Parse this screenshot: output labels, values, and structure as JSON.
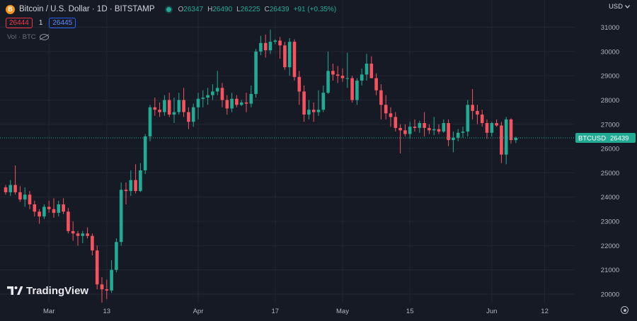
{
  "header": {
    "coin_icon": "B",
    "symbol_title": "Bitcoin / U.S. Dollar · 1D · BITSTAMP",
    "ohlc": {
      "o_label": "O",
      "o": "26347",
      "h_label": "H",
      "h": "26490",
      "l_label": "L",
      "l": "26225",
      "c_label": "C",
      "c": "26439",
      "change": "+91 (+0.35%)"
    }
  },
  "trade": {
    "bid": "26444",
    "spread": "1",
    "ask": "26445"
  },
  "volume_label": "Vol · BTC",
  "currency": "USD",
  "logo_text": "TradingView",
  "price_tag": {
    "symbol": "BTCUSD",
    "price": "26439"
  },
  "colors": {
    "up": "#22ab94",
    "down": "#f7525f",
    "background": "#161a25",
    "grid": "#232733"
  },
  "chart_data": {
    "type": "candlestick",
    "y_ticks": [
      31000,
      30000,
      29000,
      28000,
      27000,
      26000,
      25000,
      24000,
      23000,
      22000,
      21000,
      20000
    ],
    "ylim": [
      19600,
      31100
    ],
    "last_price": 26439,
    "x_ticks": [
      {
        "label": "Mar",
        "index": 9
      },
      {
        "label": "13",
        "index": 21
      },
      {
        "label": "Apr",
        "index": 40
      },
      {
        "label": "17",
        "index": 56
      },
      {
        "label": "May",
        "index": 70
      },
      {
        "label": "15",
        "index": 84
      },
      {
        "label": "Jun",
        "index": 101
      },
      {
        "label": "12",
        "index": 112
      }
    ],
    "candles": [
      [
        24400,
        24500,
        24100,
        24200
      ],
      [
        24200,
        24700,
        24050,
        24500
      ],
      [
        24500,
        25300,
        24100,
        24200
      ],
      [
        24200,
        24450,
        23800,
        23900
      ],
      [
        23900,
        24400,
        23600,
        24100
      ],
      [
        24100,
        24250,
        23500,
        23700
      ],
      [
        23700,
        23850,
        23200,
        23400
      ],
      [
        23400,
        23500,
        22900,
        23200
      ],
      [
        23200,
        23700,
        23100,
        23600
      ],
      [
        23600,
        23850,
        23350,
        23500
      ],
      [
        23500,
        23950,
        23150,
        23350
      ],
      [
        23350,
        23850,
        23200,
        23700
      ],
      [
        23700,
        23950,
        23300,
        23400
      ],
      [
        23400,
        23550,
        22500,
        22600
      ],
      [
        22600,
        23000,
        22200,
        22500
      ],
      [
        22500,
        22600,
        22000,
        22400
      ],
      [
        22400,
        22600,
        22100,
        22500
      ],
      [
        22500,
        22750,
        22300,
        22400
      ],
      [
        22400,
        22500,
        21600,
        21800
      ],
      [
        21800,
        22000,
        20200,
        20400
      ],
      [
        20400,
        20700,
        19650,
        20200
      ],
      [
        20200,
        20600,
        19800,
        20150
      ],
      [
        20150,
        21400,
        20050,
        21000
      ],
      [
        21000,
        22300,
        20900,
        22150
      ],
      [
        22150,
        24600,
        22000,
        24300
      ],
      [
        24300,
        24600,
        23700,
        24250
      ],
      [
        24250,
        25100,
        24050,
        24700
      ],
      [
        24700,
        25350,
        24150,
        24250
      ],
      [
        24250,
        25400,
        24200,
        25100
      ],
      [
        25100,
        26600,
        24950,
        26500
      ],
      [
        26500,
        27800,
        26300,
        27700
      ],
      [
        27700,
        28100,
        27350,
        27600
      ],
      [
        27600,
        27900,
        27300,
        27500
      ],
      [
        27500,
        28200,
        27350,
        28000
      ],
      [
        28000,
        28300,
        27300,
        27400
      ],
      [
        27400,
        28100,
        27050,
        27500
      ],
      [
        27500,
        28300,
        27400,
        28000
      ],
      [
        28000,
        28500,
        27300,
        27500
      ],
      [
        27500,
        27700,
        26800,
        27100
      ],
      [
        27100,
        27850,
        26900,
        27700
      ],
      [
        27700,
        28300,
        27200,
        28050
      ],
      [
        28050,
        28400,
        27700,
        28100
      ],
      [
        28100,
        28500,
        27800,
        28200
      ],
      [
        28200,
        28650,
        28000,
        28350
      ],
      [
        28350,
        29200,
        28200,
        28500
      ],
      [
        28500,
        28700,
        27700,
        28000
      ],
      [
        28000,
        28200,
        27400,
        27650
      ],
      [
        27650,
        28300,
        27500,
        28050
      ],
      [
        28050,
        28200,
        27700,
        27800
      ],
      [
        27800,
        28000,
        27750,
        27900
      ],
      [
        27900,
        28300,
        27500,
        27850
      ],
      [
        27850,
        28600,
        27700,
        28250
      ],
      [
        28250,
        30100,
        28100,
        30000
      ],
      [
        30000,
        30650,
        29850,
        30350
      ],
      [
        30350,
        30700,
        29750,
        30050
      ],
      [
        30050,
        30900,
        29900,
        30400
      ],
      [
        30400,
        30500,
        30300,
        30450
      ],
      [
        30450,
        30600,
        29700,
        30250
      ],
      [
        30250,
        30400,
        29250,
        29350
      ],
      [
        29350,
        30550,
        29000,
        30400
      ],
      [
        30400,
        30500,
        28800,
        28950
      ],
      [
        28950,
        29200,
        27800,
        28350
      ],
      [
        28350,
        28600,
        27100,
        27400
      ],
      [
        27400,
        28000,
        27200,
        27600
      ],
      [
        27600,
        27900,
        27100,
        27500
      ],
      [
        27500,
        28400,
        27350,
        27600
      ],
      [
        27600,
        28600,
        27500,
        28300
      ],
      [
        28300,
        30000,
        28250,
        29200
      ],
      [
        29200,
        29500,
        28800,
        29050
      ],
      [
        29050,
        29400,
        28700,
        29000
      ],
      [
        29000,
        29300,
        28750,
        28900
      ],
      [
        28900,
        29950,
        28500,
        28900
      ],
      [
        28900,
        29000,
        27900,
        28000
      ],
      [
        28000,
        28900,
        27800,
        28800
      ],
      [
        28800,
        29300,
        28600,
        29050
      ],
      [
        29050,
        29900,
        28800,
        29500
      ],
      [
        29500,
        29800,
        28900,
        28900
      ],
      [
        28900,
        29100,
        28200,
        28400
      ],
      [
        28400,
        28650,
        27200,
        27800
      ],
      [
        27800,
        28200,
        27200,
        27450
      ],
      [
        27450,
        27700,
        26900,
        27300
      ],
      [
        27300,
        27500,
        26700,
        26850
      ],
      [
        26850,
        27000,
        25800,
        26750
      ],
      [
        26750,
        27000,
        26500,
        26600
      ],
      [
        26600,
        27100,
        26400,
        26900
      ],
      [
        26900,
        27200,
        26700,
        26850
      ],
      [
        26850,
        27150,
        26650,
        27050
      ],
      [
        27050,
        27500,
        26500,
        26850
      ],
      [
        26850,
        27000,
        26600,
        26750
      ],
      [
        26750,
        27300,
        26550,
        26800
      ],
      [
        26800,
        27000,
        26600,
        26700
      ],
      [
        26700,
        27200,
        26650,
        27050
      ],
      [
        27050,
        27200,
        26100,
        26350
      ],
      [
        26350,
        26700,
        25850,
        26450
      ],
      [
        26450,
        26800,
        26300,
        26650
      ],
      [
        26650,
        26900,
        26450,
        26700
      ],
      [
        26700,
        28000,
        26500,
        27800
      ],
      [
        27800,
        28450,
        27200,
        27550
      ],
      [
        27550,
        27800,
        27000,
        27400
      ],
      [
        27400,
        27600,
        26900,
        27050
      ],
      [
        27050,
        27200,
        26400,
        26650
      ],
      [
        26650,
        27100,
        26500,
        27050
      ],
      [
        27050,
        27200,
        26900,
        26950
      ],
      [
        26950,
        27100,
        25400,
        25750
      ],
      [
        25750,
        27300,
        25350,
        27200
      ],
      [
        27200,
        27250,
        26200,
        26350
      ],
      [
        26347,
        26490,
        26225,
        26439
      ]
    ]
  }
}
